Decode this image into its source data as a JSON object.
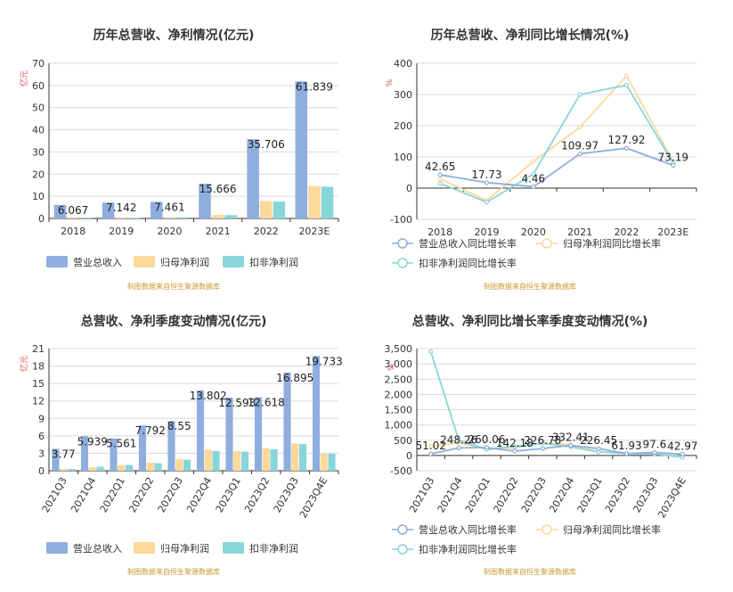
{
  "colors": {
    "revenue": "#8eaede",
    "net_profit": "#fcd99a",
    "deducted_profit": "#88d6da",
    "grid": "#d9d9d9",
    "axis": "#333333",
    "unit": "#e04848",
    "source": "#c79a2e"
  },
  "source_note": "制图数据来自恒生聚源数据库",
  "chart_data": [
    {
      "type": "bar",
      "title": "历年总营收、净利情况(亿元)",
      "yunit": "亿元",
      "categories": [
        "2018",
        "2019",
        "2020",
        "2021",
        "2022",
        "2023E"
      ],
      "ylim": [
        0,
        70
      ],
      "yticks": [
        0,
        10,
        20,
        30,
        40,
        50,
        60,
        70
      ],
      "series": [
        {
          "name": "营业总收入",
          "values": [
            6.067,
            7.142,
            7.461,
            15.666,
            35.706,
            61.839
          ]
        },
        {
          "name": "归母净利润",
          "values": [
            0.4,
            0.3,
            0.5,
            1.6,
            7.9,
            14.6
          ]
        },
        {
          "name": "扣非净利润",
          "values": [
            0.3,
            0.2,
            0.5,
            1.5,
            7.6,
            14.3
          ]
        }
      ],
      "data_labels": [
        "6.067",
        "7.142",
        "7.461",
        "15.666",
        "35.706",
        "61.839"
      ],
      "legend": "bottom",
      "grid": true
    },
    {
      "type": "line",
      "title": "历年总营收、净利同比增长情况(%)",
      "yunit": "%",
      "categories": [
        "2018",
        "2019",
        "2020",
        "2021",
        "2022",
        "2023E"
      ],
      "ylim": [
        -100,
        400
      ],
      "yticks": [
        -100,
        0,
        100,
        200,
        300,
        400
      ],
      "series": [
        {
          "name": "营业总收入同比增长率",
          "values": [
            42.65,
            17.73,
            4.46,
            109.97,
            127.92,
            73.19
          ]
        },
        {
          "name": "归母净利润同比增长率",
          "values": [
            30,
            -40,
            85,
            195,
            360,
            85
          ]
        },
        {
          "name": "扣非净利润同比增长率",
          "values": [
            15,
            -45,
            45,
            300,
            330,
            80
          ]
        }
      ],
      "data_labels": [
        "42.65",
        "17.73",
        "4.46",
        "109.97",
        "127.92",
        "73.19"
      ],
      "legend": "bottom",
      "grid": true
    },
    {
      "type": "bar",
      "title": "总营收、净利季度变动情况(亿元)",
      "yunit": "亿元",
      "categories": [
        "2021Q3",
        "2021Q4",
        "2022Q1",
        "2022Q2",
        "2022Q3",
        "2022Q4",
        "2023Q1",
        "2023Q2",
        "2023Q3",
        "2023Q4E"
      ],
      "ylim": [
        0,
        21
      ],
      "yticks": [
        0,
        3,
        6,
        9,
        12,
        15,
        18,
        21
      ],
      "series": [
        {
          "name": "营业总收入",
          "values": [
            3.77,
            5.939,
            5.561,
            7.792,
            8.55,
            13.802,
            12.593,
            12.618,
            16.895,
            19.733
          ]
        },
        {
          "name": "归母净利润",
          "values": [
            0.3,
            0.6,
            1.0,
            1.4,
            2.0,
            3.6,
            3.4,
            3.9,
            4.7,
            2.9
          ]
        },
        {
          "name": "扣非净利润",
          "values": [
            0.3,
            0.7,
            1.0,
            1.3,
            1.9,
            3.4,
            3.3,
            3.7,
            4.6,
            2.9
          ]
        }
      ],
      "data_labels": [
        "3.77",
        "5.939",
        "5.561",
        "7.792",
        "8.55",
        "13.802",
        "12.593",
        "12.618",
        "16.895",
        "19.733"
      ],
      "legend": "bottom",
      "grid": true
    },
    {
      "type": "line",
      "title": "总营收、净利同比增长率季度变动情况(%)",
      "yunit": "%",
      "categories": [
        "2021Q3",
        "2021Q4",
        "2022Q1",
        "2022Q2",
        "2022Q3",
        "2022Q4",
        "2023Q1",
        "2023Q2",
        "2023Q3",
        "2023Q4E"
      ],
      "ylim": [
        -500,
        3500
      ],
      "yticks": [
        -500,
        0,
        500,
        1000,
        1500,
        2000,
        2500,
        3000,
        3500
      ],
      "yticklabels": [
        "-500",
        "0",
        "500",
        "1,000",
        "1,500",
        "2,000",
        "2,500",
        "3,000",
        "3,500"
      ],
      "series": [
        {
          "name": "营业总收入同比增长率",
          "values": [
            51.02,
            248.26,
            260.06,
            142.18,
            226.78,
            332.41,
            226.45,
            61.93,
            97.6,
            42.97
          ]
        },
        {
          "name": "归母净利润同比增长率",
          "values": [
            300,
            420,
            200,
            250,
            420,
            350,
            120,
            80,
            70,
            -40
          ]
        },
        {
          "name": "扣非净利润同比增长率",
          "values": [
            3400,
            500,
            200,
            300,
            400,
            280,
            120,
            60,
            50,
            -60
          ]
        }
      ],
      "data_labels": [
        "51.02",
        "248.26",
        "260.06",
        "142.18",
        "226.78",
        "332.41",
        "226.45",
        "61.93",
        "97.6",
        "42.97"
      ],
      "legend": "bottom",
      "grid": true
    }
  ]
}
